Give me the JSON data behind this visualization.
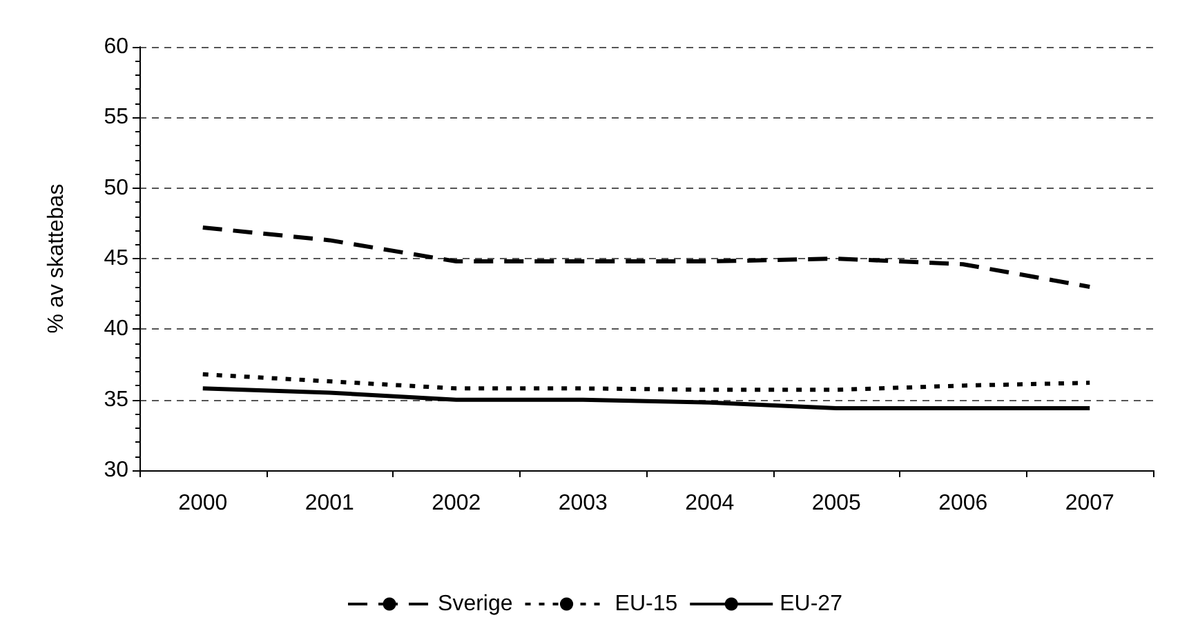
{
  "chart_data": {
    "type": "line",
    "ylabel": "% av skattebas",
    "categories": [
      "2000",
      "2001",
      "2002",
      "2003",
      "2004",
      "2005",
      "2006",
      "2007"
    ],
    "series": [
      {
        "name": "Sverige",
        "color": "#000000",
        "line_style": "dashed",
        "values": [
          47.2,
          46.3,
          44.8,
          44.8,
          44.8,
          45.0,
          44.6,
          43.0
        ]
      },
      {
        "name": "EU-15",
        "color": "#000000",
        "line_style": "dotted",
        "values": [
          36.8,
          36.3,
          35.8,
          35.8,
          35.7,
          35.7,
          36.0,
          36.2
        ]
      },
      {
        "name": "EU-27",
        "color": "#000000",
        "line_style": "solid",
        "values": [
          35.8,
          35.5,
          35.0,
          35.0,
          34.8,
          34.4,
          34.4,
          34.4
        ]
      }
    ],
    "ylim": [
      30,
      60
    ],
    "yticks": [
      30,
      35,
      40,
      45,
      50,
      55,
      60
    ],
    "grid": "y",
    "legend": "bottom",
    "marker": "none"
  }
}
